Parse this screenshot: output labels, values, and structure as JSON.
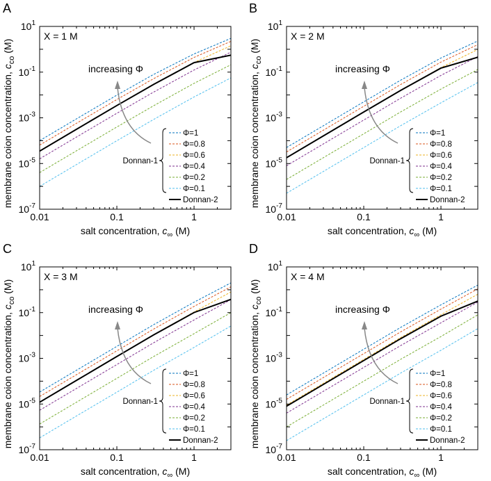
{
  "chart_data": [
    {
      "panel": "A",
      "type": "line",
      "title_text": "X = 1 M",
      "xlabel_prefix": "salt concentration, ",
      "xlabel_sym": "c",
      "xlabel_sub": "∞",
      "xlabel_suffix": " (M)",
      "ylabel_prefix": "membrane coion concentration, ",
      "ylabel_sym": "c",
      "ylabel_sub": "co",
      "ylabel_suffix": " (M)",
      "xscale": "log",
      "yscale": "log",
      "xlim": [
        0.01,
        3.0
      ],
      "ylim": [
        1e-07,
        10
      ],
      "xticks": [
        {
          "value": 0.01,
          "label": "0.01"
        },
        {
          "value": 0.1,
          "label": "0.1"
        },
        {
          "value": 1,
          "label": "1"
        }
      ],
      "yticks": [
        {
          "value": 1e-07,
          "base": "10",
          "exp": "-7"
        },
        {
          "value": 1e-05,
          "base": "10",
          "exp": "-5"
        },
        {
          "value": 0.001,
          "base": "10",
          "exp": "-3"
        },
        {
          "value": 0.1,
          "base": "10",
          "exp": "-1"
        },
        {
          "value": 10,
          "base": "10",
          "exp": "1"
        }
      ],
      "annotation": "increasing Φ",
      "legend_group": "Donnan-1",
      "series": [
        {
          "name": "Φ=1",
          "color": "#0072BD",
          "dash": true,
          "x": [
            0.01,
            0.03,
            0.1,
            0.3,
            1,
            3
          ],
          "y": [
            0.0001,
            0.0009,
            0.00983,
            0.0794,
            0.625,
            3.0
          ]
        },
        {
          "name": "Φ=0.8",
          "color": "#D95319",
          "dash": true,
          "x": [
            0.01,
            0.03,
            0.1,
            0.3,
            1,
            3
          ],
          "y": [
            6.4e-05,
            0.000576,
            0.0063,
            0.0519,
            0.44,
            2.22
          ]
        },
        {
          "name": "Φ=0.6",
          "color": "#EDB120",
          "dash": true,
          "x": [
            0.01,
            0.03,
            0.1,
            0.3,
            1,
            3
          ],
          "y": [
            3.6e-05,
            0.000324,
            0.00355,
            0.0297,
            0.264,
            1.43
          ]
        },
        {
          "name": "Φ=0.4",
          "color": "#7E2F8E",
          "dash": true,
          "x": [
            0.01,
            0.03,
            0.1,
            0.3,
            1,
            3
          ],
          "y": [
            1.6e-05,
            0.000144,
            0.00158,
            0.0134,
            0.124,
            0.75
          ]
        },
        {
          "name": "Φ=0.2",
          "color": "#77AC30",
          "dash": true,
          "x": [
            0.01,
            0.03,
            0.1,
            0.3,
            1,
            3
          ],
          "y": [
            4e-06,
            3.6e-05,
            0.000397,
            0.00339,
            0.0323,
            0.21
          ]
        },
        {
          "name": "Φ=0.1",
          "color": "#4DBEEE",
          "dash": true,
          "x": [
            0.01,
            0.03,
            0.1,
            0.3,
            1,
            3
          ],
          "y": [
            1e-06,
            9e-06,
            9.95e-05,
            0.000852,
            0.00819,
            0.056
          ]
        },
        {
          "name": "Donnan-2",
          "color": "#000000",
          "dash": false,
          "x": [
            0.01,
            0.03,
            0.1,
            0.3,
            1,
            3
          ],
          "y": [
            3.5e-05,
            0.000315,
            0.00345,
            0.029,
            0.26,
            0.55
          ]
        }
      ]
    },
    {
      "panel": "B",
      "type": "line",
      "title_text": "X = 2 M",
      "xlabel_prefix": "salt concentration, ",
      "xlabel_sym": "c",
      "xlabel_sub": "∞",
      "xlabel_suffix": " (M)",
      "ylabel_prefix": "membrane coion concentration, ",
      "ylabel_sym": "c",
      "ylabel_sub": "co",
      "ylabel_suffix": " (M)",
      "xscale": "log",
      "yscale": "log",
      "xlim": [
        0.01,
        3.0
      ],
      "ylim": [
        1e-07,
        10
      ],
      "xticks": [
        {
          "value": 0.01,
          "label": "0.01"
        },
        {
          "value": 0.1,
          "label": "0.1"
        },
        {
          "value": 1,
          "label": "1"
        }
      ],
      "yticks": [
        {
          "value": 1e-07,
          "base": "10",
          "exp": "-7"
        },
        {
          "value": 1e-05,
          "base": "10",
          "exp": "-5"
        },
        {
          "value": 0.001,
          "base": "10",
          "exp": "-3"
        },
        {
          "value": 0.1,
          "base": "10",
          "exp": "-1"
        },
        {
          "value": 10,
          "base": "10",
          "exp": "1"
        }
      ],
      "annotation": "increasing Φ",
      "legend_group": "Donnan-1",
      "series": [
        {
          "name": "Φ=1",
          "color": "#0072BD",
          "dash": true,
          "x": [
            0.01,
            0.03,
            0.1,
            0.3,
            1,
            3
          ],
          "y": [
            5e-05,
            0.00045,
            0.005,
            0.0442,
            0.414,
            2.3
          ]
        },
        {
          "name": "Φ=0.8",
          "color": "#D95319",
          "dash": true,
          "x": [
            0.01,
            0.03,
            0.1,
            0.3,
            1,
            3
          ],
          "y": [
            3.2e-05,
            0.000288,
            0.0032,
            0.0285,
            0.274,
            1.6
          ]
        },
        {
          "name": "Φ=0.6",
          "color": "#EDB120",
          "dash": true,
          "x": [
            0.01,
            0.03,
            0.1,
            0.3,
            1,
            3
          ],
          "y": [
            1.8e-05,
            0.000162,
            0.0018,
            0.0161,
            0.158,
            0.98
          ]
        },
        {
          "name": "Φ=0.4",
          "color": "#7E2F8E",
          "dash": true,
          "x": [
            0.01,
            0.03,
            0.1,
            0.3,
            1,
            3
          ],
          "y": [
            8e-06,
            7.2e-05,
            0.0008,
            0.00718,
            0.0718,
            0.48
          ]
        },
        {
          "name": "Φ=0.2",
          "color": "#77AC30",
          "dash": true,
          "x": [
            0.01,
            0.03,
            0.1,
            0.3,
            1,
            3
          ],
          "y": [
            2e-06,
            1.8e-05,
            0.0002,
            0.0018,
            0.0181,
            0.13
          ]
        },
        {
          "name": "Φ=0.1",
          "color": "#4DBEEE",
          "dash": true,
          "x": [
            0.01,
            0.03,
            0.1,
            0.3,
            1,
            3
          ],
          "y": [
            5e-07,
            4.5e-06,
            5e-05,
            0.00045,
            0.00454,
            0.035
          ]
        },
        {
          "name": "Donnan-2",
          "color": "#000000",
          "dash": false,
          "x": [
            0.01,
            0.03,
            0.1,
            0.3,
            1,
            3
          ],
          "y": [
            1.8e-05,
            0.000162,
            0.0018,
            0.0158,
            0.15,
            0.45
          ]
        }
      ]
    },
    {
      "panel": "C",
      "type": "line",
      "title_text": "X = 3 M",
      "xlabel_prefix": "salt concentration, ",
      "xlabel_sym": "c",
      "xlabel_sub": "∞",
      "xlabel_suffix": " (M)",
      "ylabel_prefix": "membrane coion concentration, ",
      "ylabel_sym": "c",
      "ylabel_sub": "co",
      "ylabel_suffix": " (M)",
      "xscale": "log",
      "yscale": "log",
      "xlim": [
        0.01,
        3.0
      ],
      "ylim": [
        1e-07,
        10
      ],
      "xticks": [
        {
          "value": 0.01,
          "label": "0.01"
        },
        {
          "value": 0.1,
          "label": "0.1"
        },
        {
          "value": 1,
          "label": "1"
        }
      ],
      "yticks": [
        {
          "value": 1e-07,
          "base": "10",
          "exp": "-7"
        },
        {
          "value": 1e-05,
          "base": "10",
          "exp": "-5"
        },
        {
          "value": 0.001,
          "base": "10",
          "exp": "-3"
        },
        {
          "value": 0.1,
          "base": "10",
          "exp": "-1"
        },
        {
          "value": 10,
          "base": "10",
          "exp": "1"
        }
      ],
      "annotation": "increasing Φ",
      "legend_group": "Donnan-1",
      "series": [
        {
          "name": "Φ=1",
          "color": "#0072BD",
          "dash": true,
          "x": [
            0.01,
            0.03,
            0.1,
            0.3,
            1,
            3
          ],
          "y": [
            3.33e-05,
            0.0003,
            0.00333,
            0.0297,
            0.286,
            2.0
          ]
        },
        {
          "name": "Φ=0.8",
          "color": "#D95319",
          "dash": true,
          "x": [
            0.01,
            0.03,
            0.1,
            0.3,
            1,
            3
          ],
          "y": [
            2.13e-05,
            0.000192,
            0.00213,
            0.0191,
            0.187,
            1.35
          ]
        },
        {
          "name": "Φ=0.6",
          "color": "#EDB120",
          "dash": true,
          "x": [
            0.01,
            0.03,
            0.1,
            0.3,
            1,
            3
          ],
          "y": [
            1.2e-05,
            0.000108,
            0.0012,
            0.0108,
            0.107,
            0.8
          ]
        },
        {
          "name": "Φ=0.4",
          "color": "#7E2F8E",
          "dash": true,
          "x": [
            0.01,
            0.03,
            0.1,
            0.3,
            1,
            3
          ],
          "y": [
            5.33e-06,
            4.8e-05,
            0.000533,
            0.0048,
            0.0479,
            0.37
          ]
        },
        {
          "name": "Φ=0.2",
          "color": "#77AC30",
          "dash": true,
          "x": [
            0.01,
            0.03,
            0.1,
            0.3,
            1,
            3
          ],
          "y": [
            1.33e-06,
            1.2e-05,
            0.000133,
            0.0012,
            0.012,
            0.1
          ]
        },
        {
          "name": "Φ=0.1",
          "color": "#4DBEEE",
          "dash": true,
          "x": [
            0.01,
            0.03,
            0.1,
            0.3,
            1,
            3
          ],
          "y": [
            3.3e-07,
            3e-06,
            3.3e-05,
            0.0003,
            0.003,
            0.026
          ]
        },
        {
          "name": "Donnan-2",
          "color": "#000000",
          "dash": false,
          "x": [
            0.01,
            0.03,
            0.1,
            0.3,
            1,
            3
          ],
          "y": [
            1.2e-05,
            0.000108,
            0.0012,
            0.0106,
            0.101,
            0.38
          ]
        }
      ]
    },
    {
      "panel": "D",
      "type": "line",
      "title_text": "X = 4 M",
      "xlabel_prefix": "salt concentration, ",
      "xlabel_sym": "c",
      "xlabel_sub": "∞",
      "xlabel_suffix": " (M)",
      "ylabel_prefix": "membrane coion concentration, ",
      "ylabel_sym": "c",
      "ylabel_sub": "co",
      "ylabel_suffix": " (M)",
      "xscale": "log",
      "yscale": "log",
      "xlim": [
        0.01,
        3.0
      ],
      "ylim": [
        1e-07,
        10
      ],
      "xticks": [
        {
          "value": 0.01,
          "label": "0.01"
        },
        {
          "value": 0.1,
          "label": "0.1"
        },
        {
          "value": 1,
          "label": "1"
        }
      ],
      "yticks": [
        {
          "value": 1e-07,
          "base": "10",
          "exp": "-7"
        },
        {
          "value": 1e-05,
          "base": "10",
          "exp": "-5"
        },
        {
          "value": 0.001,
          "base": "10",
          "exp": "-3"
        },
        {
          "value": 0.1,
          "base": "10",
          "exp": "-1"
        },
        {
          "value": 10,
          "base": "10",
          "exp": "1"
        }
      ],
      "annotation": "increasing Φ",
      "legend_group": "Donnan-1",
      "series": [
        {
          "name": "Φ=1",
          "color": "#0072BD",
          "dash": true,
          "x": [
            0.01,
            0.03,
            0.1,
            0.3,
            1,
            3
          ],
          "y": [
            2.5e-05,
            0.000225,
            0.0025,
            0.0224,
            0.219,
            1.6
          ]
        },
        {
          "name": "Φ=0.8",
          "color": "#D95319",
          "dash": true,
          "x": [
            0.01,
            0.03,
            0.1,
            0.3,
            1,
            3
          ],
          "y": [
            1.6e-05,
            0.000144,
            0.0016,
            0.0143,
            0.142,
            1.1
          ]
        },
        {
          "name": "Φ=0.6",
          "color": "#EDB120",
          "dash": true,
          "x": [
            0.01,
            0.03,
            0.1,
            0.3,
            1,
            3
          ],
          "y": [
            9e-06,
            8.1e-05,
            0.0009,
            0.00808,
            0.0806,
            0.64
          ]
        },
        {
          "name": "Φ=0.4",
          "color": "#7E2F8E",
          "dash": true,
          "x": [
            0.01,
            0.03,
            0.1,
            0.3,
            1,
            3
          ],
          "y": [
            4e-06,
            3.6e-05,
            0.0004,
            0.0036,
            0.0359,
            0.29
          ]
        },
        {
          "name": "Φ=0.2",
          "color": "#77AC30",
          "dash": true,
          "x": [
            0.01,
            0.03,
            0.1,
            0.3,
            1,
            3
          ],
          "y": [
            1e-06,
            9e-06,
            0.0001,
            0.0009,
            0.009,
            0.08
          ]
        },
        {
          "name": "Φ=0.1",
          "color": "#4DBEEE",
          "dash": true,
          "x": [
            0.01,
            0.03,
            0.1,
            0.3,
            1,
            3
          ],
          "y": [
            2.5e-07,
            2.25e-06,
            2.5e-05,
            0.000225,
            0.00225,
            0.02
          ]
        },
        {
          "name": "Donnan-2",
          "color": "#000000",
          "dash": false,
          "x": [
            0.01,
            0.03,
            0.1,
            0.3,
            1,
            3
          ],
          "y": [
            8e-06,
            7.2e-05,
            0.0008,
            0.0072,
            0.07,
            0.32
          ]
        }
      ]
    }
  ]
}
